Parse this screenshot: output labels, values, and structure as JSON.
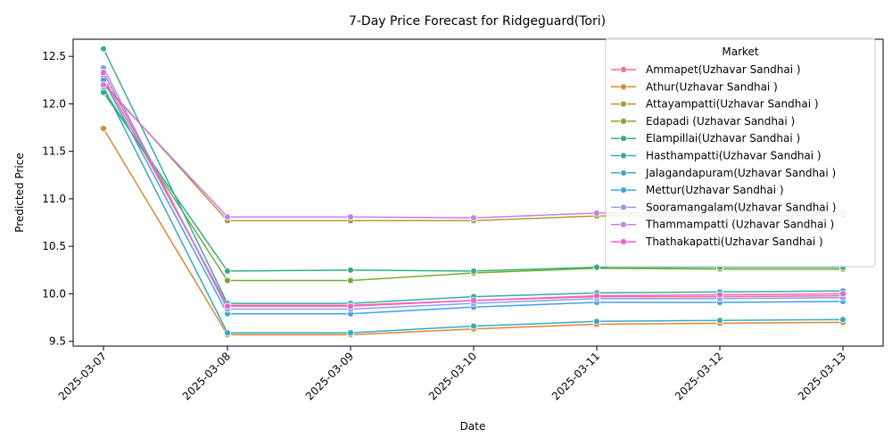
{
  "chart_data": {
    "type": "line",
    "title": "7-Day Price Forecast for Ridgeguard(Tori)",
    "xlabel": "Date",
    "ylabel": "Predicted Price",
    "x": [
      "2025-03-07",
      "2025-03-08",
      "2025-03-09",
      "2025-03-10",
      "2025-03-11",
      "2025-03-12",
      "2025-03-13"
    ],
    "ylim": [
      9.45,
      12.68
    ],
    "yticks": [
      "9.5",
      "10.0",
      "10.5",
      "11.0",
      "11.5",
      "12.0",
      "12.5"
    ],
    "legend_title": "Market",
    "legend_position": "top-right",
    "grid": false,
    "series": [
      {
        "name": "Ammapet(Uzhavar Sandhai )",
        "color": "#f77189",
        "values": [
          12.28,
          9.88,
          9.88,
          9.93,
          9.97,
          9.97,
          9.98
        ]
      },
      {
        "name": "Athur(Uzhavar Sandhai )",
        "color": "#dc8932",
        "values": [
          11.74,
          9.57,
          9.57,
          9.63,
          9.68,
          9.69,
          9.7
        ]
      },
      {
        "name": "Attayampatti(Uzhavar Sandhai )",
        "color": "#ae9d31",
        "values": [
          12.22,
          10.77,
          10.77,
          10.77,
          10.82,
          10.82,
          10.83
        ]
      },
      {
        "name": "Edapadi (Uzhavar Sandhai )",
        "color": "#77ab31",
        "values": [
          12.15,
          10.14,
          10.14,
          10.22,
          10.27,
          10.26,
          10.26
        ]
      },
      {
        "name": "Elampillai(Uzhavar Sandhai )",
        "color": "#33b07a",
        "values": [
          12.12,
          10.24,
          10.25,
          10.24,
          10.28,
          10.28,
          10.28
        ]
      },
      {
        "name": "Hasthampatti(Uzhavar Sandhai )",
        "color": "#36ada4",
        "values": [
          12.58,
          9.9,
          9.9,
          9.97,
          10.01,
          10.02,
          10.03
        ]
      },
      {
        "name": "Jalagandapuram(Uzhavar Sandhai )",
        "color": "#38a9c5",
        "values": [
          12.18,
          9.59,
          9.59,
          9.66,
          9.71,
          9.72,
          9.73
        ]
      },
      {
        "name": "Mettur(Uzhavar Sandhai )",
        "color": "#3ba3ec",
        "values": [
          12.25,
          9.79,
          9.79,
          9.86,
          9.91,
          9.91,
          9.92
        ]
      },
      {
        "name": "Sooramangalam(Uzhavar Sandhai )",
        "color": "#8b9fef",
        "values": [
          12.38,
          9.84,
          9.84,
          9.9,
          9.95,
          9.95,
          9.96
        ]
      },
      {
        "name": "Thammampatti (Uzhavar Sandhai )",
        "color": "#cc7af4",
        "values": [
          12.2,
          10.81,
          10.81,
          10.8,
          10.85,
          10.85,
          10.86
        ]
      },
      {
        "name": "Thathakapatti(Uzhavar Sandhai )",
        "color": "#f45fcb",
        "values": [
          12.33,
          9.87,
          9.87,
          9.93,
          9.98,
          9.99,
          10.0
        ]
      }
    ]
  }
}
